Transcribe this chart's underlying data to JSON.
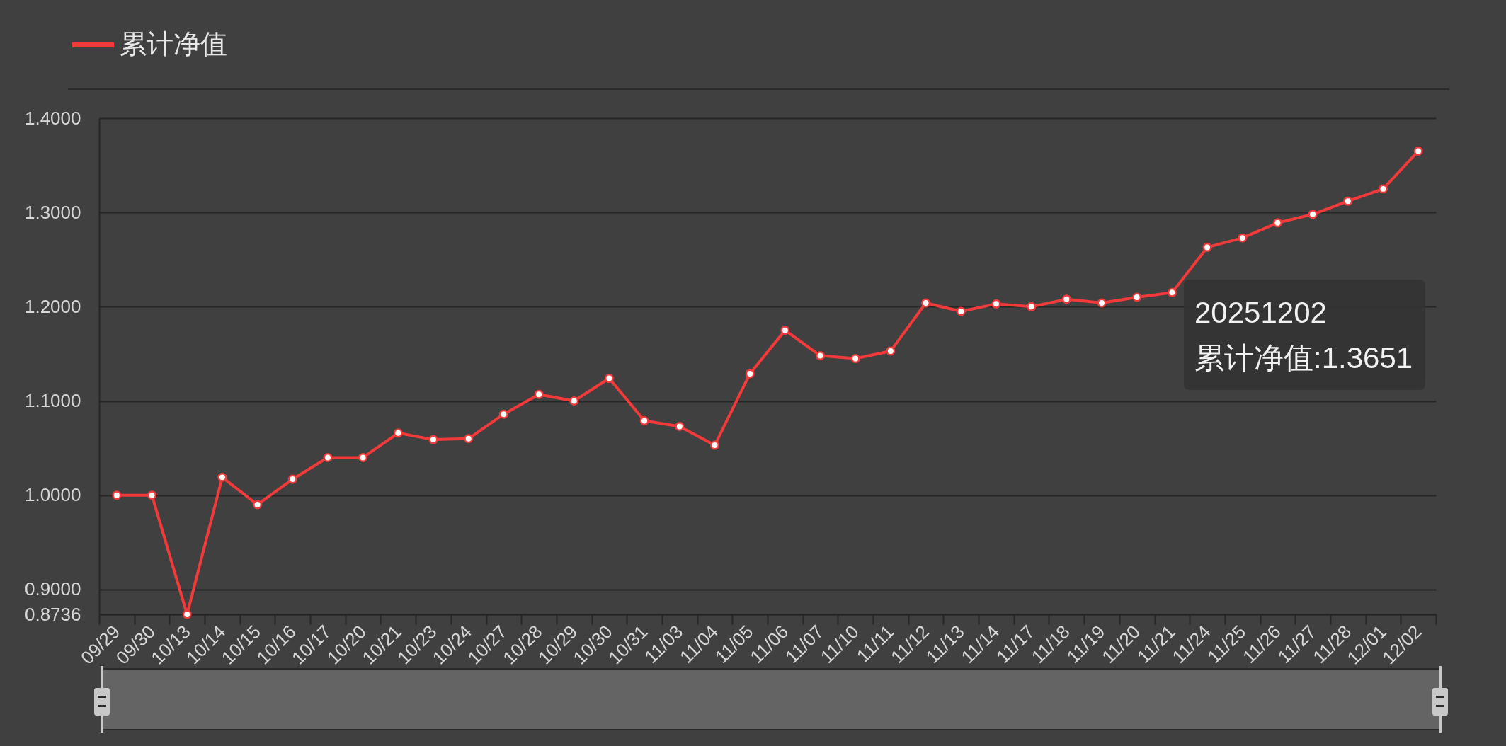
{
  "chart_data": {
    "type": "line",
    "categories": [
      "09/29",
      "09/30",
      "10/13",
      "10/14",
      "10/15",
      "10/16",
      "10/17",
      "10/20",
      "10/21",
      "10/23",
      "10/24",
      "10/27",
      "10/28",
      "10/29",
      "10/30",
      "10/31",
      "11/03",
      "11/04",
      "11/05",
      "11/06",
      "11/07",
      "11/10",
      "11/11",
      "11/12",
      "11/13",
      "11/14",
      "11/17",
      "11/18",
      "11/19",
      "11/20",
      "11/21",
      "11/24",
      "11/25",
      "11/26",
      "11/27",
      "11/28",
      "12/01",
      "12/02"
    ],
    "series": [
      {
        "name": "累计净值",
        "color": "#f23a3a",
        "values": [
          1.0,
          1.0,
          0.8736,
          1.019,
          0.99,
          1.017,
          1.04,
          1.04,
          1.066,
          1.059,
          1.06,
          1.086,
          1.107,
          1.1,
          1.124,
          1.079,
          1.073,
          1.053,
          1.129,
          1.175,
          1.148,
          1.145,
          1.153,
          1.204,
          1.195,
          1.203,
          1.2,
          1.208,
          1.204,
          1.21,
          1.215,
          1.263,
          1.273,
          1.289,
          1.298,
          1.312,
          1.325,
          1.3651
        ]
      }
    ],
    "ylim": [
      0.8736,
      1.4
    ],
    "yticks": [
      0.8736,
      {
        "value": 0.9,
        "label": "0.9000"
      },
      {
        "value": 1.0,
        "label": "1.0000"
      },
      {
        "value": 1.1,
        "label": "1.1000"
      },
      {
        "value": 1.2,
        "label": "1.2000"
      },
      {
        "value": 1.3,
        "label": "1.3000"
      },
      {
        "value": 1.4,
        "label": "1.4000"
      }
    ],
    "grid": "y",
    "legend": "top left",
    "marker": "circle",
    "line_style": "solid",
    "annotations": [
      "20251202",
      "累计净值:1.3651"
    ]
  }
}
